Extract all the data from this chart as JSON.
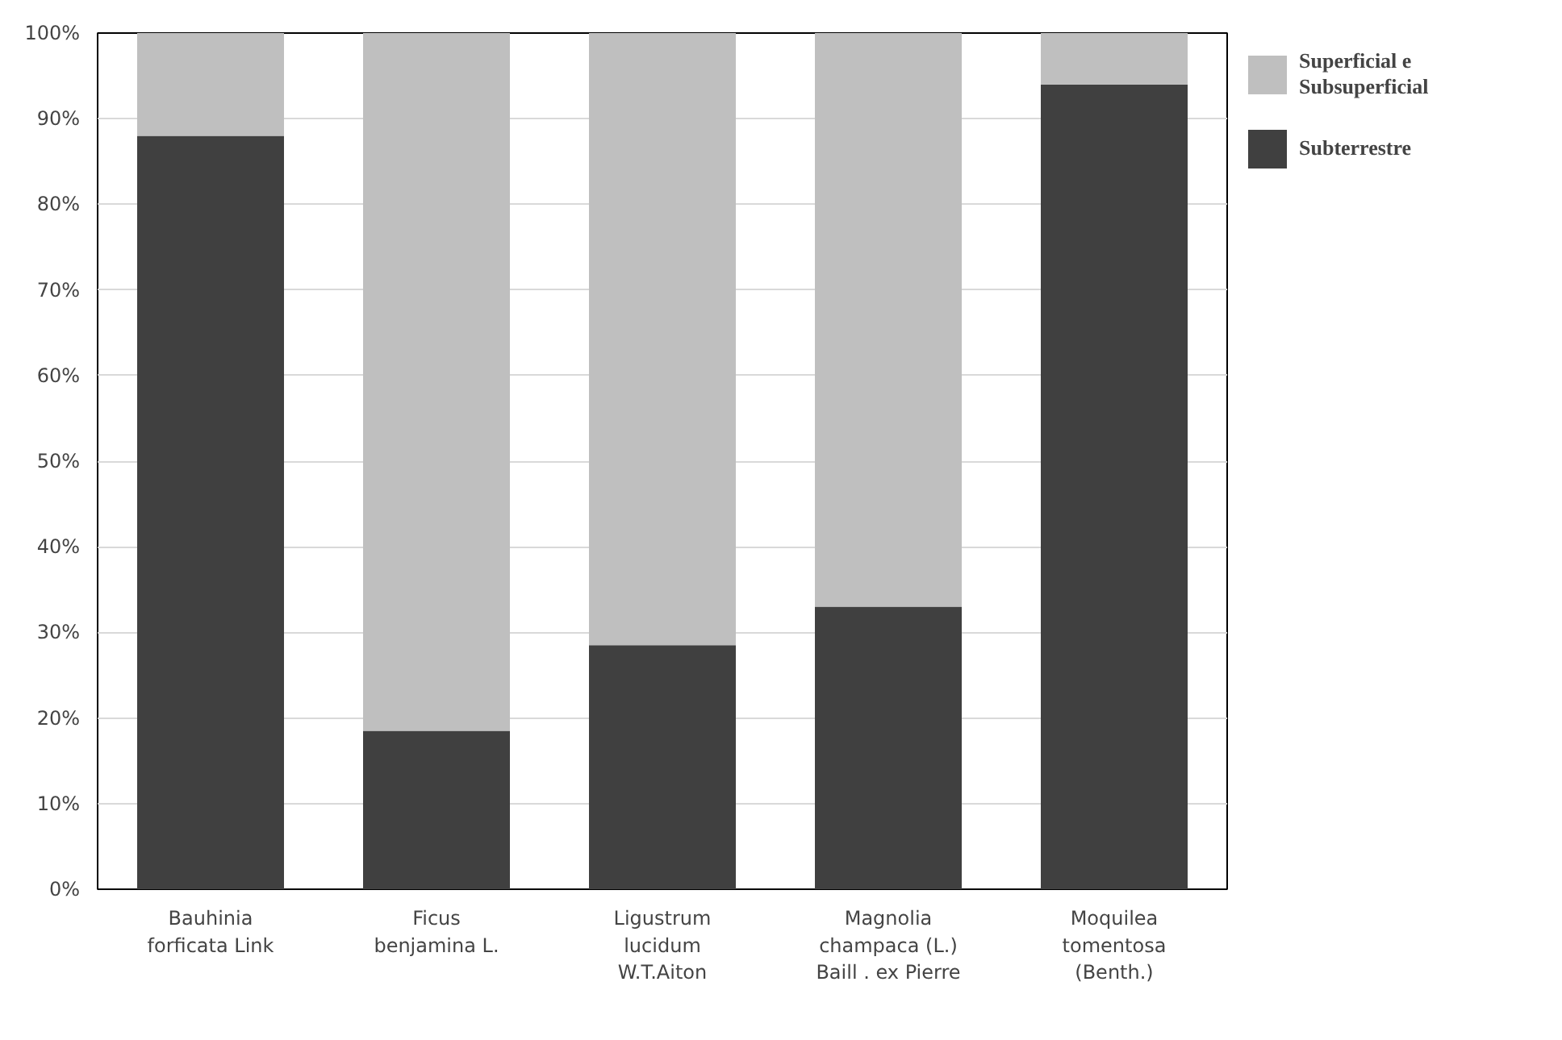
{
  "chart_data": {
    "type": "bar",
    "stacked": true,
    "categories": [
      "Bauhinia\nforficata Link",
      "Ficus\nbenjamina L.",
      "Ligustrum\nlucidum\nW.T.Aiton",
      "Magnolia\nchampaca (L.)\nBaill . ex Pierre",
      "Moquilea\ntomentosa\n(Benth.)"
    ],
    "series": [
      {
        "name": "Subterrestre",
        "color": "#404040",
        "values": [
          88,
          18.5,
          28.5,
          33,
          94
        ]
      },
      {
        "name": "Superficial e\nSubsuperficial",
        "color": "#bfbfbf",
        "values": [
          12,
          81.5,
          71.5,
          67,
          6
        ]
      }
    ],
    "ylim": [
      0,
      100
    ],
    "yticks": [
      {
        "value": 0,
        "label": "0%"
      },
      {
        "value": 10,
        "label": "10%"
      },
      {
        "value": 20,
        "label": "20%"
      },
      {
        "value": 30,
        "label": "30%"
      },
      {
        "value": 40,
        "label": "40%"
      },
      {
        "value": 50,
        "label": "50%"
      },
      {
        "value": 60,
        "label": "60%"
      },
      {
        "value": 70,
        "label": "70%"
      },
      {
        "value": 80,
        "label": "80%"
      },
      {
        "value": 90,
        "label": "90%"
      },
      {
        "value": 100,
        "label": "100%"
      }
    ],
    "grid": "y",
    "legend": "right"
  }
}
